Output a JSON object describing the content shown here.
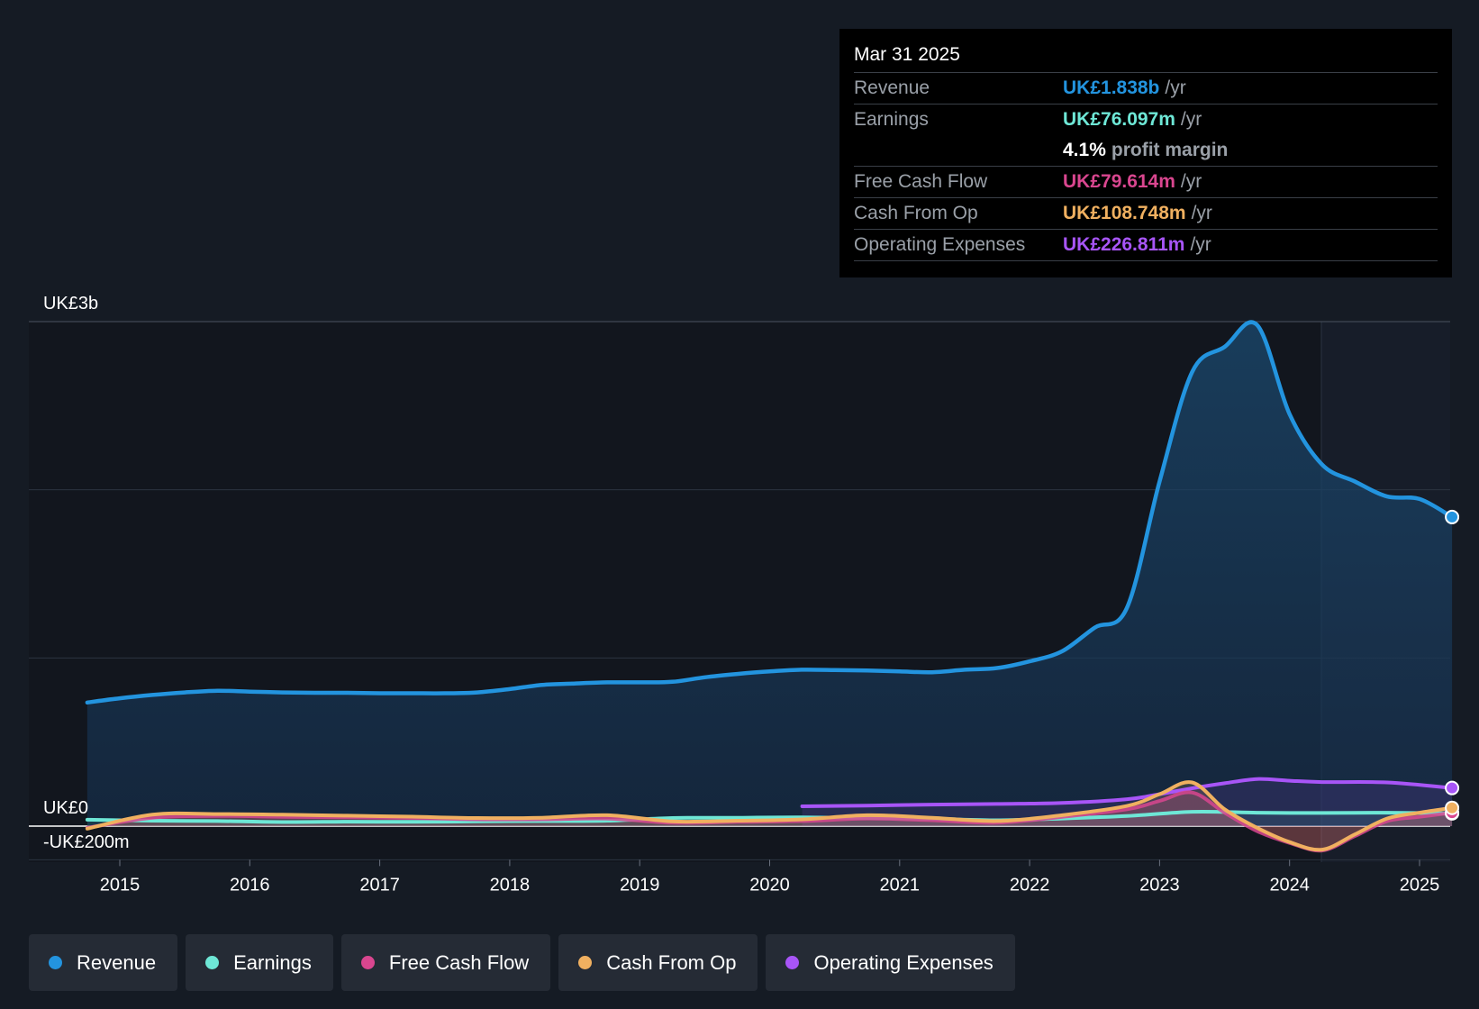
{
  "tooltip": {
    "date": "Mar 31 2025",
    "rows": [
      {
        "label": "Revenue",
        "value": "UK£1.838b",
        "unit": "/yr",
        "color": "#2394df"
      },
      {
        "label": "Earnings",
        "value": "UK£76.097m",
        "unit": "/yr",
        "color": "#6ee7d6"
      },
      {
        "label": "",
        "value": "4.1%",
        "unit": "profit margin",
        "color": "#ffffff"
      },
      {
        "label": "Free Cash Flow",
        "value": "UK£79.614m",
        "unit": "/yr",
        "color": "#d9468f"
      },
      {
        "label": "Cash From Op",
        "value": "UK£108.748m",
        "unit": "/yr",
        "color": "#f0b060"
      },
      {
        "label": "Operating Expenses",
        "value": "UK£226.811m",
        "unit": "/yr",
        "color": "#a855f7"
      }
    ]
  },
  "legend": [
    {
      "label": "Revenue",
      "color": "#2394df"
    },
    {
      "label": "Earnings",
      "color": "#6ee7d6"
    },
    {
      "label": "Free Cash Flow",
      "color": "#d9468f"
    },
    {
      "label": "Cash From Op",
      "color": "#f0b060"
    },
    {
      "label": "Operating Expenses",
      "color": "#a855f7"
    }
  ],
  "chart_data": {
    "type": "area",
    "title": "",
    "xlabel": "",
    "ylabel": "",
    "y_tick_labels": [
      {
        "label": "UK£3b",
        "value": 3000
      },
      {
        "label": "UK£0",
        "value": 0
      },
      {
        "label": "-UK£200m",
        "value": -200
      }
    ],
    "x_tick_labels": [
      "2015",
      "2016",
      "2017",
      "2018",
      "2019",
      "2020",
      "2021",
      "2022",
      "2023",
      "2024",
      "2025"
    ],
    "xlim": [
      2014.74,
      2025.25
    ],
    "ylim": [
      -200,
      3000
    ],
    "grid": true,
    "legend_position": "bottom",
    "series": [
      {
        "name": "Revenue",
        "color": "#2394df",
        "x": [
          2014.75,
          2015.0,
          2015.25,
          2015.5,
          2015.75,
          2016.0,
          2016.25,
          2016.5,
          2016.75,
          2017.0,
          2017.25,
          2017.5,
          2017.75,
          2018.0,
          2018.25,
          2018.5,
          2018.75,
          2019.0,
          2019.25,
          2019.5,
          2019.75,
          2020.0,
          2020.25,
          2020.5,
          2020.75,
          2021.0,
          2021.25,
          2021.5,
          2021.75,
          2022.0,
          2022.25,
          2022.5,
          2022.75,
          2023.0,
          2023.25,
          2023.5,
          2023.75,
          2024.0,
          2024.25,
          2024.5,
          2024.75,
          2025.0,
          2025.25
        ],
        "values": [
          735,
          760,
          780,
          795,
          805,
          800,
          795,
          793,
          793,
          790,
          790,
          790,
          795,
          815,
          840,
          848,
          855,
          855,
          858,
          885,
          905,
          920,
          930,
          928,
          925,
          920,
          915,
          930,
          940,
          980,
          1040,
          1180,
          1300,
          2050,
          2700,
          2850,
          2980,
          2450,
          2150,
          2050,
          1960,
          1945,
          1838
        ]
      },
      {
        "name": "Earnings",
        "color": "#6ee7d6",
        "x": [
          2014.75,
          2015.25,
          2015.75,
          2016.25,
          2016.75,
          2017.25,
          2017.75,
          2018.25,
          2018.75,
          2019.25,
          2019.75,
          2020.25,
          2020.75,
          2021.25,
          2021.75,
          2022.25,
          2022.75,
          2023.25,
          2023.75,
          2024.25,
          2024.75,
          2025.25
        ],
        "values": [
          38,
          32,
          30,
          24,
          26,
          25,
          28,
          30,
          32,
          48,
          50,
          52,
          48,
          44,
          35,
          45,
          60,
          85,
          80,
          78,
          80,
          76
        ]
      },
      {
        "name": "Free Cash Flow",
        "color": "#d9468f",
        "x": [
          2014.75,
          2015.25,
          2015.75,
          2016.25,
          2016.75,
          2017.25,
          2017.75,
          2018.25,
          2018.75,
          2019.25,
          2019.75,
          2020.25,
          2020.75,
          2021.25,
          2021.75,
          2022.25,
          2022.75,
          2023.0,
          2023.25,
          2023.5,
          2023.75,
          2024.0,
          2024.25,
          2024.5,
          2024.75,
          2025.0,
          2025.25
        ],
        "values": [
          -10,
          50,
          60,
          55,
          52,
          48,
          40,
          40,
          45,
          20,
          25,
          30,
          45,
          35,
          20,
          55,
          100,
          150,
          200,
          80,
          -30,
          -100,
          -145,
          -60,
          30,
          55,
          79.6
        ]
      },
      {
        "name": "Cash From Op",
        "color": "#f0b060",
        "x": [
          2014.75,
          2015.25,
          2015.75,
          2016.25,
          2016.75,
          2017.25,
          2017.75,
          2018.25,
          2018.75,
          2019.25,
          2019.75,
          2020.25,
          2020.75,
          2021.25,
          2021.75,
          2022.25,
          2022.75,
          2023.0,
          2023.25,
          2023.5,
          2023.75,
          2024.0,
          2024.25,
          2024.5,
          2024.75,
          2025.0,
          2025.25
        ],
        "values": [
          -15,
          68,
          72,
          68,
          62,
          56,
          48,
          50,
          65,
          28,
          32,
          40,
          65,
          50,
          30,
          65,
          120,
          190,
          260,
          100,
          -10,
          -95,
          -140,
          -50,
          45,
          80,
          108.7
        ]
      },
      {
        "name": "Operating Expenses",
        "color": "#a855f7",
        "x": [
          2020.25,
          2020.75,
          2021.25,
          2021.75,
          2022.25,
          2022.75,
          2023.0,
          2023.25,
          2023.5,
          2023.75,
          2024.0,
          2024.25,
          2024.75,
          2025.25
        ],
        "values": [
          118,
          122,
          128,
          132,
          138,
          160,
          190,
          225,
          255,
          280,
          270,
          262,
          260,
          226.8
        ]
      }
    ]
  }
}
